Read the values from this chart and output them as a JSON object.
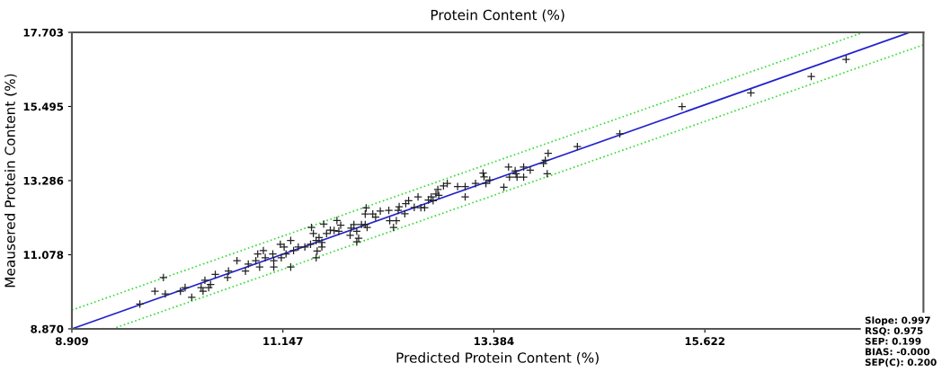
{
  "chart_data": {
    "type": "scatter",
    "title": "Protein Content (%)",
    "xlabel": "Predicted Protein Content (%)",
    "ylabel": "Meausered Protein Content (%)",
    "xlim": [
      8.909,
      17.94
    ],
    "ylim": [
      8.87,
      17.703
    ],
    "xticks": [
      8.909,
      11.147,
      13.384,
      15.622
    ],
    "yticks": [
      {
        "value": 8.87,
        "label": "8.870"
      },
      11.078,
      13.286,
      15.495,
      17.703
    ],
    "grid": false,
    "legend": false,
    "marker": "cross",
    "series": [
      {
        "type": "line",
        "color": "#33dd33",
        "line_style": "dotted",
        "marker": "none",
        "x": [
          8.909,
          17.3
        ],
        "values": [
          9.43,
          17.7
        ]
      },
      {
        "type": "line",
        "color": "#33dd33",
        "line_style": "dotted",
        "marker": "none",
        "x": [
          9.34,
          17.94
        ],
        "values": [
          8.87,
          17.33
        ]
      },
      {
        "type": "line",
        "color": "#2222cc",
        "line_style": "solid",
        "marker": "none",
        "x": [
          8.909,
          17.79
        ],
        "values": [
          8.87,
          17.7
        ]
      },
      {
        "color": "#222222",
        "x": [
          9.63,
          9.79,
          9.88,
          9.9,
          10.06,
          10.11,
          10.18,
          10.28,
          10.3,
          10.32,
          10.36,
          10.38,
          10.43,
          10.56,
          10.57,
          10.66,
          10.75,
          10.78,
          10.86,
          10.88,
          10.9,
          10.94,
          10.96,
          11.04,
          11.05,
          11.05,
          11.12,
          11.13,
          11.16,
          11.18,
          11.23,
          11.23,
          11.26,
          11.31,
          11.38,
          11.45,
          11.47,
          11.44,
          11.5,
          11.53,
          11.51,
          11.5,
          11.56,
          11.61,
          11.65,
          11.69,
          11.72,
          11.74,
          11.76,
          11.58,
          11.56,
          11.86,
          11.87,
          11.9,
          11.93,
          11.95,
          11.93,
          11.98,
          12.02,
          12.04,
          12.03,
          12.02,
          12.1,
          12.13,
          12.18,
          12.27,
          12.28,
          12.32,
          12.35,
          12.37,
          12.38,
          12.44,
          12.45,
          12.48,
          12.54,
          12.58,
          12.61,
          12.65,
          12.69,
          12.72,
          12.74,
          12.77,
          12.79,
          12.8,
          12.85,
          12.89,
          13.0,
          13.08,
          13.08,
          13.19,
          13.28,
          13.27,
          13.3,
          13.34,
          13.49,
          13.54,
          13.55,
          13.61,
          13.63,
          13.62,
          13.7,
          13.7,
          13.77,
          13.91,
          13.93,
          13.96,
          13.95,
          14.27,
          14.72,
          15.38,
          16.11,
          16.75,
          17.12
        ],
        "values": [
          9.61,
          9.99,
          10.4,
          9.91,
          9.99,
          10.1,
          9.81,
          10.1,
          9.99,
          10.32,
          10.1,
          10.19,
          10.49,
          10.4,
          10.59,
          10.9,
          10.59,
          10.8,
          10.9,
          11.1,
          10.71,
          11.2,
          10.99,
          11.1,
          10.9,
          10.71,
          11.39,
          10.99,
          11.31,
          11.1,
          11.5,
          10.71,
          11.2,
          11.31,
          11.31,
          11.89,
          11.71,
          11.39,
          11.5,
          11.59,
          11.19,
          10.99,
          11.31,
          11.71,
          11.81,
          11.8,
          12.1,
          11.78,
          11.96,
          11.99,
          11.44,
          11.66,
          11.87,
          11.98,
          11.78,
          11.57,
          11.46,
          11.98,
          11.98,
          11.89,
          12.47,
          12.29,
          12.29,
          12.2,
          12.38,
          12.4,
          12.09,
          11.89,
          12.09,
          12.4,
          12.51,
          12.3,
          12.6,
          12.69,
          12.49,
          12.8,
          12.48,
          12.48,
          12.71,
          12.8,
          12.69,
          12.89,
          13.02,
          12.85,
          13.13,
          13.2,
          13.11,
          13.11,
          12.8,
          13.2,
          13.4,
          13.51,
          13.2,
          13.3,
          13.09,
          13.69,
          13.39,
          13.58,
          13.39,
          13.49,
          13.69,
          13.39,
          13.6,
          13.8,
          13.89,
          14.1,
          13.49,
          14.3,
          14.68,
          15.49,
          15.9,
          16.39,
          16.9
        ]
      }
    ],
    "annotations": [
      "Slope: 0.997",
      "RSQ: 0.975",
      "SEP: 0.199",
      "BIAS: -0.000",
      "SEP(C): 0.200"
    ]
  }
}
